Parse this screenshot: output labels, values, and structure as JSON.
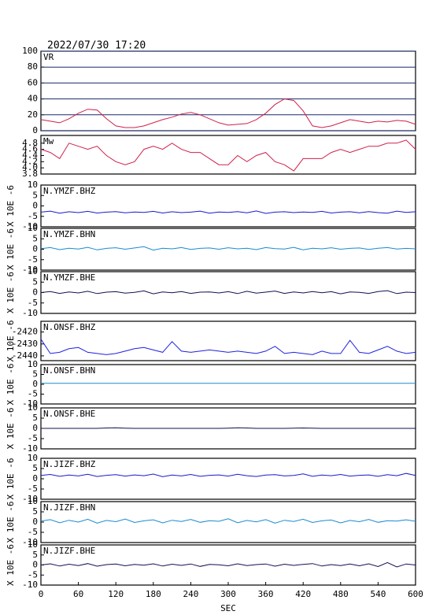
{
  "header": {
    "timestamp": "2022/07/30 17:20"
  },
  "chart_data": [
    {
      "type": "line",
      "label": "VR",
      "color": "#d0204a",
      "grid": true,
      "xlim": [
        0,
        600
      ],
      "ylim": [
        0,
        100
      ],
      "yticks": [
        0,
        20,
        40,
        60,
        80,
        100
      ],
      "x": [
        0,
        15,
        30,
        45,
        60,
        75,
        90,
        105,
        120,
        135,
        150,
        165,
        180,
        195,
        210,
        225,
        240,
        255,
        270,
        285,
        300,
        315,
        330,
        345,
        360,
        375,
        390,
        405,
        420,
        435,
        450,
        465,
        480,
        495,
        510,
        525,
        540,
        555,
        570,
        585,
        600
      ],
      "values": [
        14,
        12,
        10,
        15,
        22,
        27,
        26,
        15,
        6,
        4,
        4,
        6,
        10,
        14,
        17,
        21,
        23,
        20,
        15,
        10,
        7,
        8,
        9,
        14,
        22,
        33,
        40,
        38,
        25,
        6,
        4,
        6,
        10,
        14,
        12,
        10,
        12,
        11,
        13,
        12,
        8
      ]
    },
    {
      "type": "line",
      "label": "Mw",
      "color": "#d0204a",
      "grid": false,
      "xlim": [
        0,
        600
      ],
      "ylim": [
        3.8,
        5.05
      ],
      "yticks": [
        3.8,
        {
          "value": 4,
          "label": "4.0"
        },
        4.2,
        4.4,
        4.6,
        4.8
      ],
      "x": [
        0,
        15,
        30,
        45,
        60,
        75,
        90,
        105,
        120,
        135,
        150,
        165,
        180,
        195,
        210,
        225,
        240,
        255,
        270,
        285,
        300,
        315,
        330,
        345,
        360,
        375,
        390,
        405,
        420,
        435,
        450,
        465,
        480,
        495,
        510,
        525,
        540,
        555,
        570,
        585,
        600
      ],
      "values": [
        4.6,
        4.5,
        4.3,
        4.8,
        4.7,
        4.6,
        4.7,
        4.4,
        4.2,
        4.1,
        4.2,
        4.6,
        4.7,
        4.6,
        4.8,
        4.6,
        4.5,
        4.5,
        4.3,
        4.1,
        4.1,
        4.4,
        4.2,
        4.4,
        4.5,
        4.2,
        4.1,
        3.9,
        4.3,
        4.3,
        4.3,
        4.5,
        4.6,
        4.5,
        4.6,
        4.7,
        4.7,
        4.8,
        4.8,
        4.9,
        4.6
      ]
    },
    {
      "type": "line",
      "label": "N.YMZF.BHZ",
      "ylabel": "X 10E -6",
      "color": "#1a1acc",
      "grid": false,
      "xlim": [
        0,
        600
      ],
      "ylim": [
        -10,
        10
      ],
      "yticks": [
        -10,
        -5,
        0,
        5,
        10
      ],
      "x": [
        0,
        15,
        30,
        45,
        60,
        75,
        90,
        105,
        120,
        135,
        150,
        165,
        180,
        195,
        210,
        225,
        240,
        255,
        270,
        285,
        300,
        315,
        330,
        345,
        360,
        375,
        390,
        405,
        420,
        435,
        450,
        465,
        480,
        495,
        510,
        525,
        540,
        555,
        570,
        585,
        600
      ],
      "values": [
        -3,
        -2.5,
        -3.5,
        -2.8,
        -3.2,
        -2.6,
        -3.4,
        -3,
        -2.7,
        -3.3,
        -2.9,
        -3.1,
        -2.6,
        -3.4,
        -2.8,
        -3.2,
        -3,
        -2.5,
        -3.5,
        -2.9,
        -3.1,
        -2.7,
        -3.3,
        -2.4,
        -3.6,
        -3,
        -2.8,
        -3.2,
        -2.9,
        -3.1,
        -2.6,
        -3.4,
        -3,
        -2.8,
        -3.3,
        -2.7,
        -3.2,
        -3.5,
        -2.5,
        -3.1,
        -2.8
      ]
    },
    {
      "type": "line",
      "label": "N.YMZF.BHN",
      "ylabel": "X 10E -6",
      "color": "#1a8ad0",
      "grid": false,
      "xlim": [
        0,
        600
      ],
      "ylim": [
        -10,
        10
      ],
      "yticks": [
        -10,
        -5,
        0,
        5,
        10
      ],
      "x": [
        0,
        15,
        30,
        45,
        60,
        75,
        90,
        105,
        120,
        135,
        150,
        165,
        180,
        195,
        210,
        225,
        240,
        255,
        270,
        285,
        300,
        315,
        330,
        345,
        360,
        375,
        390,
        405,
        420,
        435,
        450,
        465,
        480,
        495,
        510,
        525,
        540,
        555,
        570,
        585,
        600
      ],
      "values": [
        0.3,
        0.8,
        -0.2,
        0.5,
        0.1,
        0.9,
        -0.3,
        0.4,
        0.7,
        0,
        0.6,
        1.2,
        -0.4,
        0.5,
        0.2,
        0.8,
        -0.1,
        0.4,
        0.6,
        0,
        0.7,
        0.2,
        0.5,
        -0.2,
        0.8,
        0.3,
        0.1,
        0.9,
        -0.3,
        0.5,
        0.2,
        0.7,
        0,
        0.4,
        0.6,
        -0.1,
        0.5,
        0.8,
        0.1,
        0.4,
        0.2
      ]
    },
    {
      "type": "line",
      "label": "N.YMZF.BHE",
      "ylabel": "X 10E -6",
      "color": "#101050",
      "grid": false,
      "xlim": [
        0,
        600
      ],
      "ylim": [
        -10,
        10
      ],
      "yticks": [
        -10,
        -5,
        0,
        5,
        10
      ],
      "x": [
        0,
        15,
        30,
        45,
        60,
        75,
        90,
        105,
        120,
        135,
        150,
        165,
        180,
        195,
        210,
        225,
        240,
        255,
        270,
        285,
        300,
        315,
        330,
        345,
        360,
        375,
        390,
        405,
        420,
        435,
        450,
        465,
        480,
        495,
        510,
        525,
        540,
        555,
        570,
        585,
        600
      ],
      "values": [
        0,
        0.5,
        -0.4,
        0.3,
        -0.2,
        0.6,
        -0.5,
        0.2,
        0.4,
        -0.3,
        0.1,
        0.8,
        -0.6,
        0.3,
        -0.1,
        0.5,
        -0.4,
        0.2,
        0.3,
        -0.2,
        0.4,
        -0.5,
        0.6,
        -0.3,
        0.2,
        0.7,
        -0.4,
        0.3,
        -0.2,
        0.5,
        -0.1,
        0.4,
        -0.6,
        0.3,
        0.1,
        -0.4,
        0.5,
        0.9,
        -0.5,
        0.2,
        0
      ]
    },
    {
      "type": "line",
      "label": "N.ONSF.BHZ",
      "ylabel": "X 10E -6",
      "color": "#2020e0",
      "grid": false,
      "xlim": [
        0,
        600
      ],
      "ylim": [
        -2444,
        -2411
      ],
      "yticks": [
        -2440,
        -2430,
        -2420
      ],
      "x": [
        0,
        15,
        30,
        45,
        60,
        75,
        90,
        105,
        120,
        135,
        150,
        165,
        180,
        195,
        210,
        225,
        240,
        255,
        270,
        285,
        300,
        315,
        330,
        345,
        360,
        375,
        390,
        405,
        420,
        435,
        450,
        465,
        480,
        495,
        510,
        525,
        540,
        555,
        570,
        585,
        600
      ],
      "values": [
        -2426,
        -2438,
        -2437,
        -2434,
        -2433,
        -2437,
        -2438,
        -2439,
        -2438,
        -2436,
        -2434,
        -2433,
        -2435,
        -2437,
        -2428,
        -2436,
        -2437,
        -2436,
        -2435,
        -2436,
        -2437,
        -2436,
        -2437,
        -2438,
        -2436,
        -2432,
        -2438,
        -2437,
        -2438,
        -2439,
        -2436,
        -2438,
        -2438,
        -2427,
        -2437,
        -2438,
        -2435,
        -2432,
        -2436,
        -2438,
        -2437
      ]
    },
    {
      "type": "line",
      "label": "N.ONSF.BHN",
      "ylabel": "X 10E -6",
      "color": "#1a8ad0",
      "grid": false,
      "xlim": [
        0,
        600
      ],
      "ylim": [
        -10,
        10
      ],
      "yticks": [
        -10,
        -5,
        0,
        5,
        10
      ],
      "x": [
        0,
        15,
        30,
        45,
        60,
        75,
        90,
        105,
        120,
        135,
        150,
        165,
        180,
        195,
        210,
        225,
        240,
        255,
        270,
        285,
        300,
        315,
        330,
        345,
        360,
        375,
        390,
        405,
        420,
        435,
        450,
        465,
        480,
        495,
        510,
        525,
        540,
        555,
        570,
        585,
        600
      ],
      "values": [
        0.5,
        0.5,
        0.5,
        0.5,
        0.5,
        0.5,
        0.5,
        0.5,
        0.5,
        0.5,
        0.5,
        0.5,
        0.5,
        0.5,
        0.5,
        0.5,
        0.5,
        0.5,
        0.5,
        0.5,
        0.5,
        0.5,
        0.5,
        0.5,
        0.5,
        0.5,
        0.5,
        0.5,
        0.5,
        0.5,
        0.5,
        0.5,
        0.5,
        0.5,
        0.5,
        0.5,
        0.5,
        0.5,
        0.5,
        0.5,
        0.5
      ]
    },
    {
      "type": "line",
      "label": "N.ONSF.BHE",
      "ylabel": "X 10E -6",
      "color": "#101050",
      "grid": false,
      "xlim": [
        0,
        600
      ],
      "ylim": [
        -10,
        10
      ],
      "yticks": [
        -10,
        -5,
        0,
        5,
        10
      ],
      "x": [
        0,
        15,
        30,
        45,
        60,
        75,
        90,
        105,
        120,
        135,
        150,
        165,
        180,
        195,
        210,
        225,
        240,
        255,
        270,
        285,
        300,
        315,
        330,
        345,
        360,
        375,
        390,
        405,
        420,
        435,
        450,
        465,
        480,
        495,
        510,
        525,
        540,
        555,
        570,
        585,
        600
      ],
      "values": [
        0,
        0,
        0,
        0,
        0,
        0,
        0,
        0.2,
        0.3,
        0.1,
        0,
        0,
        0,
        0,
        0,
        0,
        0,
        0,
        0,
        0,
        0.1,
        0.3,
        0.2,
        0,
        0,
        0,
        0,
        0.1,
        0.2,
        0.1,
        0,
        0,
        0,
        0,
        0,
        0,
        0,
        0,
        0,
        0,
        0
      ]
    },
    {
      "type": "line",
      "label": "N.JIZF.BHZ",
      "ylabel": "X 10E -6",
      "color": "#1a1acc",
      "grid": false,
      "xlim": [
        0,
        600
      ],
      "ylim": [
        -10,
        10
      ],
      "yticks": [
        -10,
        -5,
        0,
        5,
        10
      ],
      "x": [
        0,
        15,
        30,
        45,
        60,
        75,
        90,
        105,
        120,
        135,
        150,
        165,
        180,
        195,
        210,
        225,
        240,
        255,
        270,
        285,
        300,
        315,
        330,
        345,
        360,
        375,
        390,
        405,
        420,
        435,
        450,
        465,
        480,
        495,
        510,
        525,
        540,
        555,
        570,
        585,
        600
      ],
      "values": [
        1.6,
        2.1,
        1.2,
        1.8,
        1.4,
        2.2,
        1.1,
        1.7,
        2,
        1.3,
        1.9,
        1.5,
        2.3,
        1,
        1.8,
        1.4,
        2.1,
        1.2,
        1.7,
        1.9,
        1.3,
        2.2,
        1.5,
        1.1,
        1.8,
        2,
        1.4,
        1.6,
        2.4,
        1.2,
        1.8,
        1.5,
        2.1,
        1.3,
        1.7,
        1.9,
        1.2,
        2,
        1.5,
        2.6,
        1.6
      ]
    },
    {
      "type": "line",
      "label": "N.JIZF.BHN",
      "ylabel": "X 10E -6",
      "color": "#1a8ad0",
      "grid": false,
      "xlim": [
        0,
        600
      ],
      "ylim": [
        -10,
        10
      ],
      "yticks": [
        -10,
        -5,
        0,
        5,
        10
      ],
      "x": [
        0,
        15,
        30,
        45,
        60,
        75,
        90,
        105,
        120,
        135,
        150,
        165,
        180,
        195,
        210,
        225,
        240,
        255,
        270,
        285,
        300,
        315,
        330,
        345,
        360,
        375,
        390,
        405,
        420,
        435,
        450,
        465,
        480,
        495,
        510,
        525,
        540,
        555,
        570,
        585,
        600
      ],
      "values": [
        0.5,
        1.2,
        -0.3,
        0.9,
        0,
        1.4,
        -0.5,
        0.8,
        0.2,
        1.5,
        -0.2,
        0.6,
        1.1,
        -0.4,
        0.9,
        0.3,
        1.3,
        -0.1,
        0.7,
        0.4,
        1.6,
        -0.3,
        0.8,
        0.1,
        1.2,
        -0.5,
        0.9,
        0.3,
        1.4,
        -0.2,
        0.6,
        1,
        -0.4,
        0.8,
        0.2,
        1.3,
        -0.1,
        0.7,
        0.5,
        1.1,
        0.4
      ]
    },
    {
      "type": "line",
      "label": "N.JIZF.BHE",
      "ylabel": "X 10E -6",
      "color": "#101050",
      "grid": false,
      "xlim": [
        0,
        600
      ],
      "ylim": [
        -10,
        10
      ],
      "yticks": [
        -10,
        -5,
        0,
        5,
        10
      ],
      "x": [
        0,
        15,
        30,
        45,
        60,
        75,
        90,
        105,
        120,
        135,
        150,
        165,
        180,
        195,
        210,
        225,
        240,
        255,
        270,
        285,
        300,
        315,
        330,
        345,
        360,
        375,
        390,
        405,
        420,
        435,
        450,
        465,
        480,
        495,
        510,
        525,
        540,
        555,
        570,
        585,
        600
      ],
      "values": [
        0,
        0.6,
        -0.5,
        0.4,
        -0.3,
        0.7,
        -0.6,
        0.2,
        0.5,
        -0.4,
        0.3,
        -0.1,
        0.6,
        -0.5,
        0.4,
        -0.2,
        0.5,
        -0.7,
        0.3,
        0.1,
        -0.4,
        0.6,
        -0.3,
        0.2,
        0.5,
        -0.6,
        0.4,
        -0.2,
        0.3,
        0.7,
        -0.5,
        0.2,
        -0.3,
        0.5,
        -0.4,
        0.6,
        -0.8,
        1.2,
        -1,
        0.5,
        0
      ],
      "xlabel": "SEC",
      "xticks": [
        0,
        60,
        120,
        180,
        240,
        300,
        360,
        420,
        480,
        540,
        600
      ]
    }
  ]
}
